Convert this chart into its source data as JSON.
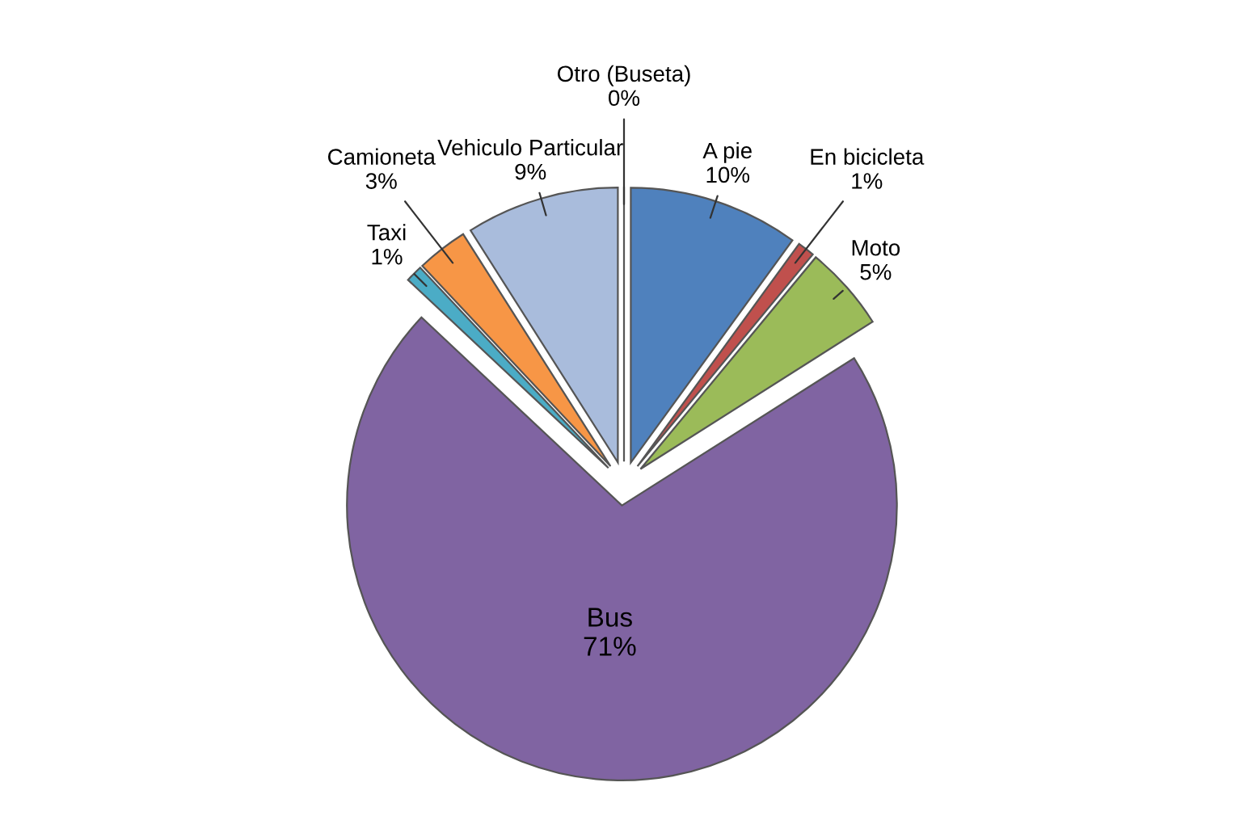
{
  "chart_data": {
    "type": "pie",
    "categories": [
      "A pie",
      "En bicicleta",
      "Moto",
      "Bus",
      "Taxi",
      "Camioneta",
      "Vehiculo Particular",
      "Otro (Buseta)"
    ],
    "values": [
      10,
      1,
      5,
      71,
      1,
      3,
      9,
      0
    ],
    "value_labels": [
      "10%",
      "1%",
      "5%",
      "71%",
      "1%",
      "3%",
      "9%",
      "0%"
    ],
    "colors": [
      "#4f81bd",
      "#c0504d",
      "#9bbb59",
      "#8064a2",
      "#4bacc6",
      "#f79646",
      "#a9bcdc",
      "#ffffff"
    ],
    "legend": false
  }
}
